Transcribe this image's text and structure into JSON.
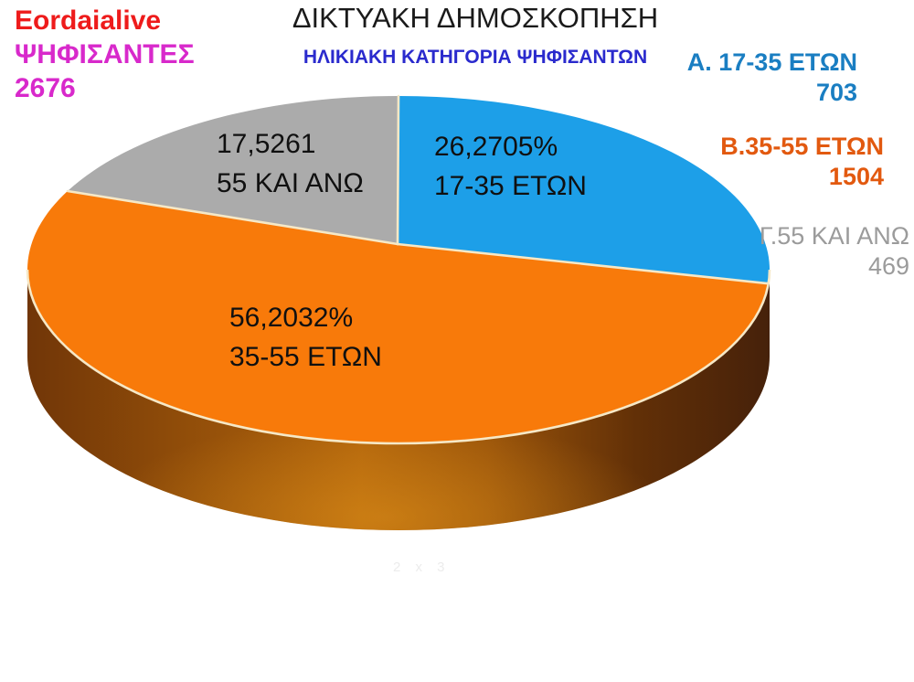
{
  "branding": {
    "site_name": "Eordaialive",
    "voters_label": "ΨΗΦΙΣΑΝΤΕΣ",
    "voters_count": "2676",
    "site_color": "#ee1b1b",
    "voters_color": "#d829cb"
  },
  "header": {
    "title": "ΔΙΚΤΥΑΚΗ ΔΗΜΟΣΚΟΠΗΣΗ",
    "subtitle": "ΗΛΙΚΙΑΚΗ ΚΑΤΗΓΟΡΙΑ ΨΗΦΙΣΑΝΤΩΝ",
    "title_color": "#1a1a1a",
    "subtitle_color": "#2a2acd"
  },
  "chart_data": {
    "type": "pie",
    "style": "3d",
    "title": "ΔΙΚΤΥΑΚΗ ΔΗΜΟΣΚΟΠΗΣΗ",
    "subtitle": "ΗΛΙΚΙΑΚΗ ΚΑΤΗΓΟΡΙΑ ΨΗΦΙΣΑΝΤΩΝ",
    "total": 2676,
    "start_angle_deg": 90,
    "direction": "clockwise",
    "legend_position": "right",
    "labels_on_slices": true,
    "separator_color": "#f6e8c6",
    "slices": [
      {
        "key": "A",
        "name": "17-35 ΕΤΩΝ",
        "value": 703,
        "percent": 26.2705,
        "color": "#1d9fe8",
        "pie_label": [
          "26,2705%",
          "17-35 ΕΤΩΝ"
        ],
        "legend_label": "Α. 17-35 ΕΤΩΝ",
        "legend_value": "703",
        "legend_color": "#1a7ec2"
      },
      {
        "key": "B",
        "name": "35-55 ΕΤΩΝ",
        "value": 1504,
        "percent": 56.2032,
        "color": "#f87a0a",
        "pie_label": [
          "56,2032%",
          "35-55 ΕΤΩΝ"
        ],
        "legend_label": "Β.35-55 ΕΤΩΝ",
        "legend_value": "1504",
        "legend_color": "#e2590f"
      },
      {
        "key": "C",
        "name": "55 ΚΑΙ ΑΝΩ",
        "value": 469,
        "percent": 17.5261,
        "color": "#ababab",
        "pie_label": [
          "17,5261",
          "55 ΚΑΙ ΑΝΩ"
        ],
        "legend_label": "Γ.55 ΚΑΙ ΑΝΩ",
        "legend_value": "469",
        "legend_color": "#9b9b9b"
      }
    ]
  },
  "watermark": "2 x 3"
}
